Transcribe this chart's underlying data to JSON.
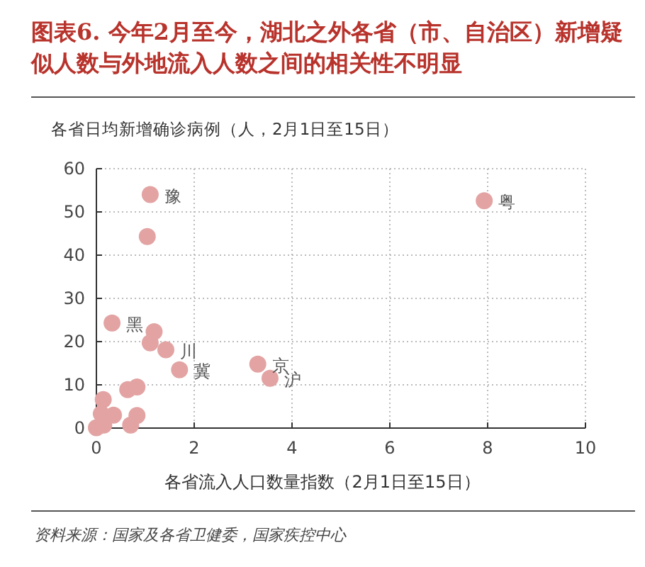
{
  "chart_data": {
    "type": "scatter",
    "title": "图表6. 今年2月至今，湖北之外各省（市、自治区）新增疑似人数与外地流入人数之间的相关性不明显",
    "ylabel": "各省日均新增确诊病例（人，2月1日至15日）",
    "xlabel": "各省流入人口数量指数（2月1日至15日）",
    "x": [
      7.93,
      1.1,
      1.04,
      0.32,
      1.18,
      1.1,
      1.42,
      1.7,
      3.3,
      3.55,
      0.64,
      0.83,
      0.14,
      0.1,
      0.35,
      0.0,
      0.15,
      0.83,
      0.7
    ],
    "values": [
      52.6,
      54,
      44.3,
      24.3,
      22.3,
      19.7,
      18.1,
      13.5,
      14.8,
      11.5,
      8.9,
      9.5,
      6.6,
      3.3,
      3.0,
      0.1,
      0.7,
      2.9,
      0.7
    ],
    "color": "#e3a3a3",
    "marker": "circle",
    "grid": true,
    "xlim": [
      0,
      10
    ],
    "ylim": [
      0,
      60
    ],
    "xticks": [
      0,
      2,
      4,
      6,
      8,
      10
    ],
    "yticks": [
      0,
      10,
      20,
      30,
      40,
      50,
      60
    ],
    "annotations": [
      {
        "text": "粤",
        "x": 7.93,
        "y": 52.6
      },
      {
        "text": "豫",
        "x": 1.1,
        "y": 54
      },
      {
        "text": "黑",
        "x": 0.32,
        "y": 24.3
      },
      {
        "text": "川",
        "x": 1.42,
        "y": 18.1
      },
      {
        "text": "冀",
        "x": 1.7,
        "y": 13.5
      },
      {
        "text": "京",
        "x": 3.3,
        "y": 14.8
      },
      {
        "text": "沪",
        "x": 3.55,
        "y": 11.5
      },
      "资料来源：国家及各省卫健委，国家疾控中心"
    ]
  }
}
